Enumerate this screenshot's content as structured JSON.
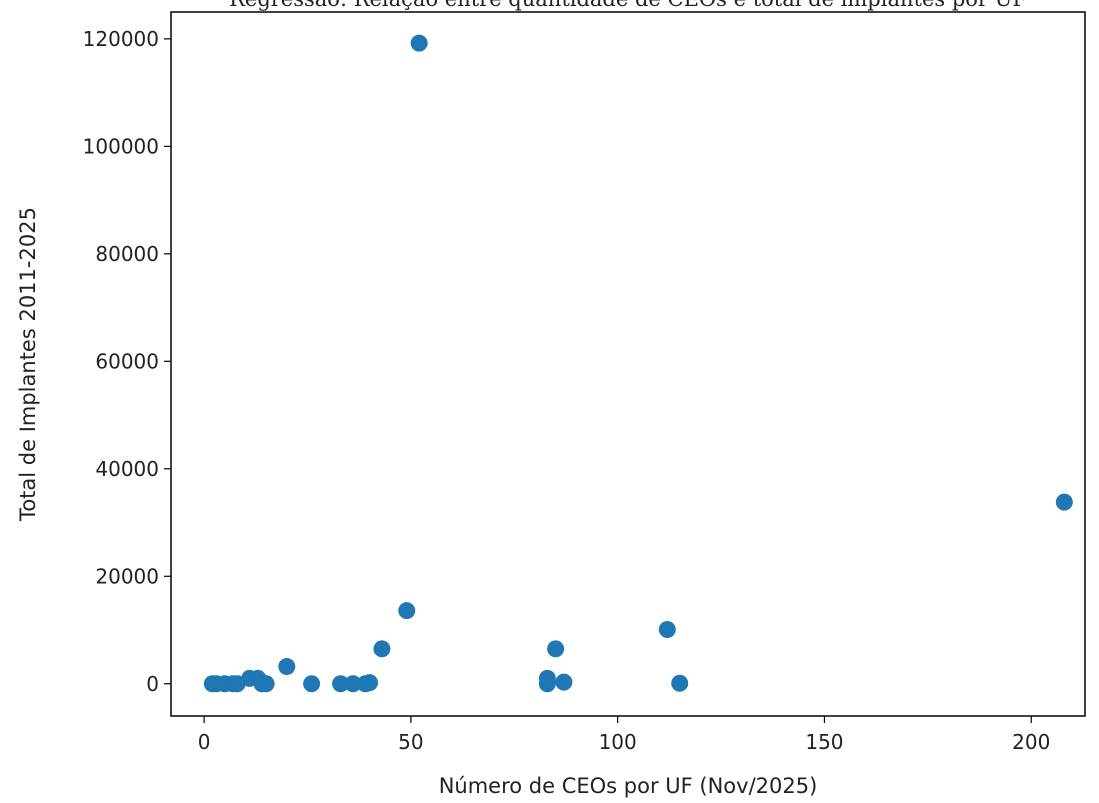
{
  "chart_data": {
    "type": "scatter",
    "title": "Regressão: Relação entre quantidade de CEOs e total de implantes por UF",
    "xlabel": "Número de CEOs por UF (Nov/2025)",
    "ylabel": "Total de Implantes 2011-2025",
    "xlim": [
      -8,
      213
    ],
    "ylim": [
      -6000,
      125000
    ],
    "xticks": [
      0,
      50,
      100,
      150,
      200
    ],
    "yticks": [
      0,
      20000,
      40000,
      60000,
      80000,
      100000,
      120000
    ],
    "xtick_labels": [
      "0",
      "50",
      "100",
      "150",
      "200"
    ],
    "ytick_labels": [
      "0",
      "20000",
      "40000",
      "60000",
      "80000",
      "100000",
      "120000"
    ],
    "grid": false,
    "marker_color": "#1f77b4",
    "series": [
      {
        "points": [
          {
            "x": 2,
            "y": 0
          },
          {
            "x": 3,
            "y": 0
          },
          {
            "x": 5,
            "y": 0
          },
          {
            "x": 7,
            "y": 0
          },
          {
            "x": 8,
            "y": 0
          },
          {
            "x": 11,
            "y": 1000
          },
          {
            "x": 13,
            "y": 1000
          },
          {
            "x": 14,
            "y": 0
          },
          {
            "x": 15,
            "y": 0
          },
          {
            "x": 20,
            "y": 3200
          },
          {
            "x": 26,
            "y": 0
          },
          {
            "x": 33,
            "y": 0
          },
          {
            "x": 36,
            "y": 0
          },
          {
            "x": 39,
            "y": 0
          },
          {
            "x": 40,
            "y": 200
          },
          {
            "x": 43,
            "y": 6500
          },
          {
            "x": 49,
            "y": 13600
          },
          {
            "x": 52,
            "y": 119200
          },
          {
            "x": 83,
            "y": 1000
          },
          {
            "x": 83,
            "y": 0
          },
          {
            "x": 85,
            "y": 6500
          },
          {
            "x": 87,
            "y": 300
          },
          {
            "x": 112,
            "y": 10100
          },
          {
            "x": 115,
            "y": 100
          },
          {
            "x": 208,
            "y": 33800
          }
        ]
      }
    ]
  }
}
